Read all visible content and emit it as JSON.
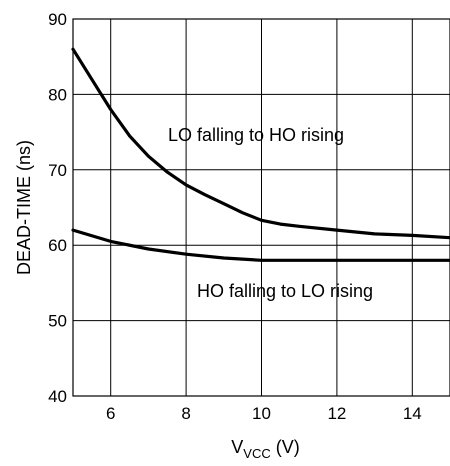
{
  "chart_data": {
    "type": "line",
    "title": "",
    "xlabel": "V",
    "xlabel_subscript": "VCC",
    "xlabel_unit": " (V)",
    "ylabel": "DEAD-TIME (ns)",
    "xlim": [
      5,
      15
    ],
    "ylim": [
      40,
      90
    ],
    "x_ticks": [
      6,
      8,
      10,
      12,
      14
    ],
    "y_ticks": [
      40,
      50,
      60,
      70,
      80,
      90
    ],
    "grid": true,
    "series": [
      {
        "name": "LO falling to HO rising",
        "x": [
          5,
          5.5,
          6,
          6.5,
          7,
          7.5,
          8,
          8.5,
          9,
          9.5,
          10,
          10.5,
          11,
          12,
          13,
          14,
          15
        ],
        "y": [
          86,
          82,
          78,
          74.5,
          71.8,
          69.7,
          68,
          66.7,
          65.5,
          64.3,
          63.3,
          62.8,
          62.5,
          62,
          61.5,
          61.3,
          61
        ]
      },
      {
        "name": "HO falling to LO rising",
        "x": [
          5,
          6,
          7,
          8,
          9,
          10,
          11,
          12,
          13,
          14,
          15
        ],
        "y": [
          62,
          60.5,
          59.5,
          58.8,
          58.3,
          58,
          58,
          58,
          58,
          58,
          58
        ]
      }
    ]
  }
}
